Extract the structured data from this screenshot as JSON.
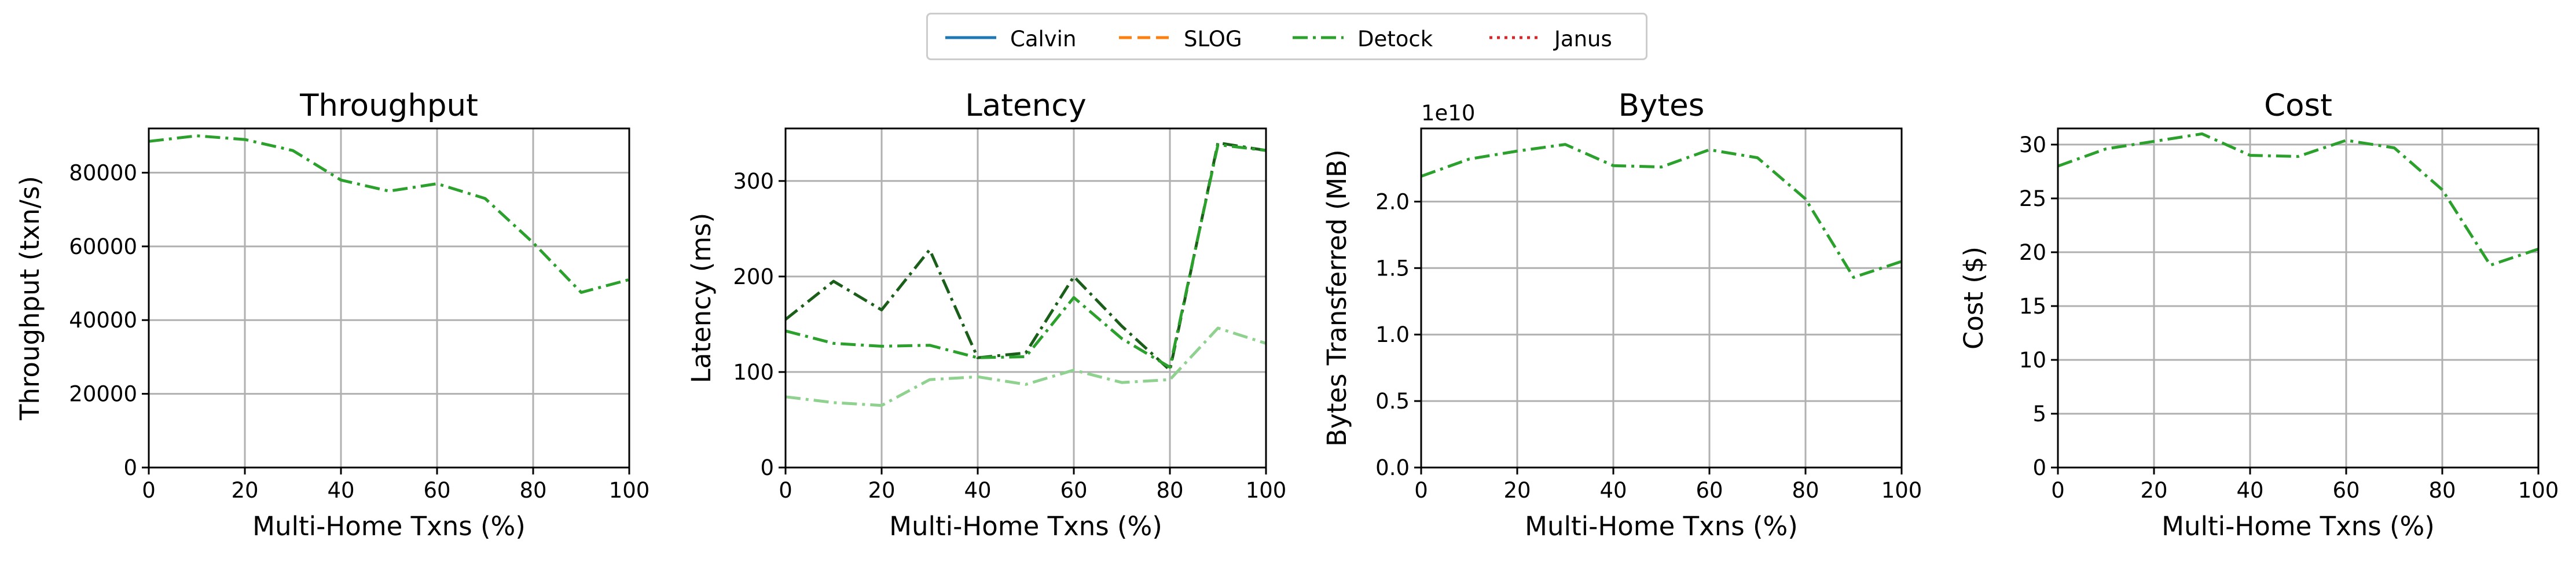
{
  "legend": {
    "entries": [
      {
        "name": "Calvin",
        "color": "#1f77b4",
        "dash": "solid"
      },
      {
        "name": "SLOG",
        "color": "#ff7f0e",
        "dash": "dashed"
      },
      {
        "name": "Detock",
        "color": "#2ca02c",
        "dash": "dashdot"
      },
      {
        "name": "Janus",
        "color": "#d62728",
        "dash": "dotted"
      }
    ],
    "placement": "top-center"
  },
  "chart_data": [
    {
      "type": "line",
      "title": "Throughput",
      "xlabel": "Multi-Home Txns (%)",
      "ylabel": "Throughput (txn/s)",
      "xlim": [
        0,
        100
      ],
      "ylim": [
        0,
        92000
      ],
      "xticks": [
        0,
        20,
        40,
        60,
        80,
        100
      ],
      "yticks": [
        0,
        20000,
        40000,
        60000,
        80000
      ],
      "ytick_labels": [
        "0",
        "20000",
        "40000",
        "60000",
        "80000"
      ],
      "grid": true,
      "x": [
        0,
        10,
        20,
        30,
        40,
        50,
        60,
        70,
        80,
        90,
        100
      ],
      "series": [
        {
          "name": "Detock",
          "color": "#2ca02c",
          "dash": "dashdot",
          "values": [
            88500,
            90000,
            89000,
            86000,
            78000,
            75000,
            77000,
            73000,
            61000,
            47500,
            51000
          ]
        }
      ]
    },
    {
      "type": "line",
      "title": "Latency",
      "xlabel": "Multi-Home Txns (%)",
      "ylabel": "Latency (ms)",
      "xlim": [
        0,
        100
      ],
      "ylim": [
        0,
        355
      ],
      "xticks": [
        0,
        20,
        40,
        60,
        80,
        100
      ],
      "yticks": [
        0,
        100,
        200,
        300
      ],
      "ytick_labels": [
        "0",
        "100",
        "200",
        "300"
      ],
      "grid": true,
      "x": [
        0,
        10,
        20,
        30,
        40,
        50,
        60,
        70,
        80,
        90,
        100
      ],
      "series": [
        {
          "color": "#1a5e1a",
          "dash": "dashdot",
          "values": [
            155,
            195,
            165,
            228,
            115,
            120,
            200,
            148,
            102,
            340,
            332
          ]
        },
        {
          "color": "#2ca02c",
          "dash": "dashdot",
          "values": [
            143,
            130,
            127,
            128,
            115,
            116,
            178,
            135,
            105,
            338,
            332
          ]
        },
        {
          "color": "#8fd18f",
          "dash": "dashdot",
          "values": [
            74,
            68,
            65,
            92,
            95,
            87,
            102,
            89,
            92,
            146,
            130
          ]
        }
      ]
    },
    {
      "type": "line",
      "title": "Bytes",
      "xlabel": "Multi-Home Txns (%)",
      "ylabel": "Bytes Transferred (MB)",
      "scale_label": "1e10",
      "xlim": [
        0,
        100
      ],
      "ylim": [
        0,
        2.55
      ],
      "xticks": [
        0,
        20,
        40,
        60,
        80,
        100
      ],
      "yticks": [
        0,
        0.5,
        1.0,
        1.5,
        2.0
      ],
      "ytick_labels": [
        "0.0",
        "0.5",
        "1.0",
        "1.5",
        "2.0"
      ],
      "grid": true,
      "x": [
        0,
        10,
        20,
        30,
        40,
        50,
        60,
        70,
        80,
        90,
        100
      ],
      "series": [
        {
          "name": "Detock",
          "color": "#2ca02c",
          "dash": "dashdot",
          "values": [
            2.19,
            2.32,
            2.38,
            2.43,
            2.27,
            2.26,
            2.39,
            2.33,
            2.02,
            1.43,
            1.55
          ]
        }
      ]
    },
    {
      "type": "line",
      "title": "Cost",
      "xlabel": "Multi-Home Txns (%)",
      "ylabel": "Cost ($)",
      "xlim": [
        0,
        100
      ],
      "ylim": [
        0,
        31.5
      ],
      "xticks": [
        0,
        20,
        40,
        60,
        80,
        100
      ],
      "yticks": [
        0,
        5,
        10,
        15,
        20,
        25,
        30
      ],
      "ytick_labels": [
        "0",
        "5",
        "10",
        "15",
        "20",
        "25",
        "30"
      ],
      "grid": true,
      "x": [
        0,
        10,
        20,
        30,
        40,
        50,
        60,
        70,
        80,
        90,
        100
      ],
      "series": [
        {
          "name": "Detock",
          "color": "#2ca02c",
          "dash": "dashdot",
          "values": [
            28.0,
            29.6,
            30.3,
            31.0,
            29.0,
            28.9,
            30.4,
            29.7,
            25.8,
            18.8,
            20.3
          ]
        }
      ]
    }
  ]
}
